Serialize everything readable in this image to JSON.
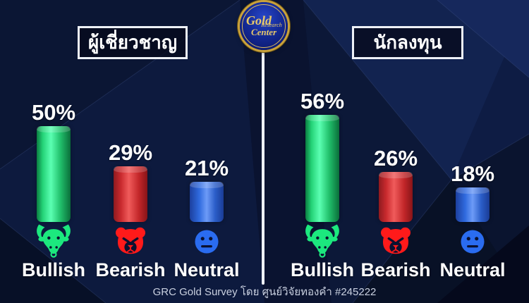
{
  "logo": {
    "line1": "Gold",
    "line2": "Research",
    "line3": "Center"
  },
  "headers": {
    "left": "ผู้เชี่ยวชาญ",
    "right": "นักลงทุน"
  },
  "caption": "GRC Gold Survey โดย ศูนย์วิจัยทองคำ #245222",
  "chart_data": {
    "type": "bar",
    "unit": "%",
    "categories": [
      "Bullish",
      "Bearish",
      "Neutral"
    ],
    "series": [
      {
        "name": "ผู้เชี่ยวชาญ",
        "values": [
          50,
          29,
          21
        ],
        "labels": [
          "50%",
          "29%",
          "21%"
        ]
      },
      {
        "name": "นักลงทุน",
        "values": [
          56,
          26,
          18
        ],
        "labels": [
          "56%",
          "26%",
          "18%"
        ]
      }
    ],
    "colors": {
      "bullish": "#00e07a",
      "bearish": "#e3262c",
      "neutral": "#2a6cf0",
      "background": "#0e1b42",
      "divider": "#eef1f7"
    },
    "ylim": [
      0,
      60
    ],
    "grid": false,
    "legend_position": "none"
  }
}
